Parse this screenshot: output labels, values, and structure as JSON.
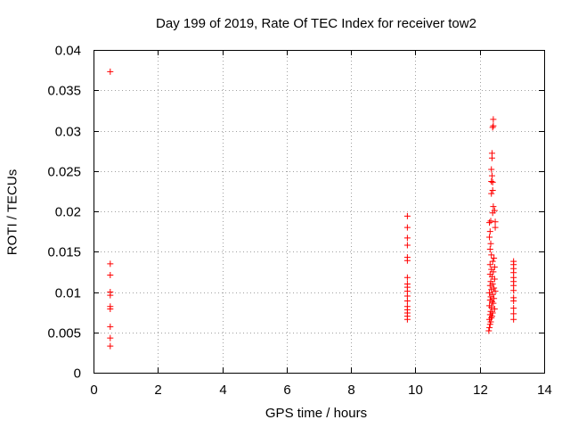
{
  "chart_data": {
    "type": "scatter",
    "title": "Day 199 of 2019, Rate Of TEC Index for receiver tow2",
    "xlabel": "GPS time / hours",
    "ylabel": "ROTI / TECUs",
    "xlim": [
      0,
      14
    ],
    "ylim": [
      0,
      0.04
    ],
    "xticks": [
      0,
      2,
      4,
      6,
      8,
      10,
      12,
      14
    ],
    "yticks": [
      0,
      0.005,
      0.01,
      0.015,
      0.02,
      0.025,
      0.03,
      0.035,
      0.04
    ],
    "xtick_labels": [
      "0",
      "2",
      "4",
      "6",
      "8",
      "10",
      "12",
      "14"
    ],
    "ytick_labels": [
      "0",
      "0.005",
      "0.01",
      "0.015",
      "0.02",
      "0.025",
      "0.03",
      "0.035",
      "0.04"
    ],
    "grid": true,
    "marker": "+",
    "color": "#ff0000",
    "series": [
      {
        "name": "tow2",
        "points": [
          [
            0.52,
            0.0373
          ],
          [
            0.52,
            0.0135
          ],
          [
            0.52,
            0.0121
          ],
          [
            0.52,
            0.01
          ],
          [
            0.52,
            0.0096
          ],
          [
            0.52,
            0.0082
          ],
          [
            0.52,
            0.0079
          ],
          [
            0.52,
            0.0057
          ],
          [
            0.52,
            0.0043
          ],
          [
            0.52,
            0.0033
          ],
          [
            9.75,
            0.0194
          ],
          [
            9.75,
            0.018
          ],
          [
            9.75,
            0.0167
          ],
          [
            9.75,
            0.0158
          ],
          [
            9.75,
            0.0143
          ],
          [
            9.75,
            0.0139
          ],
          [
            9.75,
            0.0118
          ],
          [
            9.75,
            0.011
          ],
          [
            9.75,
            0.0106
          ],
          [
            9.75,
            0.0101
          ],
          [
            9.75,
            0.0095
          ],
          [
            9.75,
            0.0089
          ],
          [
            9.75,
            0.0082
          ],
          [
            9.75,
            0.0078
          ],
          [
            9.75,
            0.0074
          ],
          [
            9.75,
            0.007
          ],
          [
            9.75,
            0.0066
          ],
          [
            12.42,
            0.0314
          ],
          [
            12.42,
            0.0306
          ],
          [
            12.4,
            0.0304
          ],
          [
            12.38,
            0.0272
          ],
          [
            12.38,
            0.0266
          ],
          [
            12.36,
            0.0252
          ],
          [
            12.38,
            0.0244
          ],
          [
            12.36,
            0.0237
          ],
          [
            12.4,
            0.0236
          ],
          [
            12.4,
            0.0226
          ],
          [
            12.36,
            0.0222
          ],
          [
            12.42,
            0.0206
          ],
          [
            12.46,
            0.0201
          ],
          [
            12.4,
            0.0198
          ],
          [
            12.34,
            0.0188
          ],
          [
            12.3,
            0.0186
          ],
          [
            12.48,
            0.0187
          ],
          [
            12.48,
            0.018
          ],
          [
            12.32,
            0.0175
          ],
          [
            12.3,
            0.0168
          ],
          [
            12.34,
            0.016
          ],
          [
            12.32,
            0.0153
          ],
          [
            12.36,
            0.0146
          ],
          [
            12.44,
            0.0142
          ],
          [
            12.4,
            0.0138
          ],
          [
            12.32,
            0.0134
          ],
          [
            12.46,
            0.0131
          ],
          [
            12.36,
            0.0128
          ],
          [
            12.42,
            0.0125
          ],
          [
            12.32,
            0.0122
          ],
          [
            12.38,
            0.0119
          ],
          [
            12.46,
            0.0116
          ],
          [
            12.34,
            0.0113
          ],
          [
            12.4,
            0.011
          ],
          [
            12.32,
            0.0108
          ],
          [
            12.44,
            0.0105
          ],
          [
            12.36,
            0.0103
          ],
          [
            12.48,
            0.0101
          ],
          [
            12.3,
            0.0099
          ],
          [
            12.4,
            0.0097
          ],
          [
            12.34,
            0.0094
          ],
          [
            12.44,
            0.0092
          ],
          [
            12.32,
            0.009
          ],
          [
            12.38,
            0.0088
          ],
          [
            12.42,
            0.0086
          ],
          [
            12.3,
            0.0083
          ],
          [
            12.36,
            0.0081
          ],
          [
            12.46,
            0.0079
          ],
          [
            12.34,
            0.0076
          ],
          [
            12.4,
            0.0074
          ],
          [
            12.32,
            0.0072
          ],
          [
            12.38,
            0.007
          ],
          [
            12.36,
            0.0068
          ],
          [
            12.3,
            0.0066
          ],
          [
            12.34,
            0.0063
          ],
          [
            12.32,
            0.006
          ],
          [
            12.3,
            0.0056
          ],
          [
            12.28,
            0.0052
          ],
          [
            13.05,
            0.0138
          ],
          [
            13.05,
            0.0134
          ],
          [
            13.05,
            0.0129
          ],
          [
            13.05,
            0.0124
          ],
          [
            13.05,
            0.0118
          ],
          [
            13.05,
            0.0113
          ],
          [
            13.05,
            0.0108
          ],
          [
            13.05,
            0.0102
          ],
          [
            13.05,
            0.0093
          ],
          [
            13.05,
            0.0089
          ],
          [
            13.05,
            0.008
          ],
          [
            13.05,
            0.0073
          ],
          [
            13.05,
            0.0066
          ]
        ]
      }
    ]
  }
}
